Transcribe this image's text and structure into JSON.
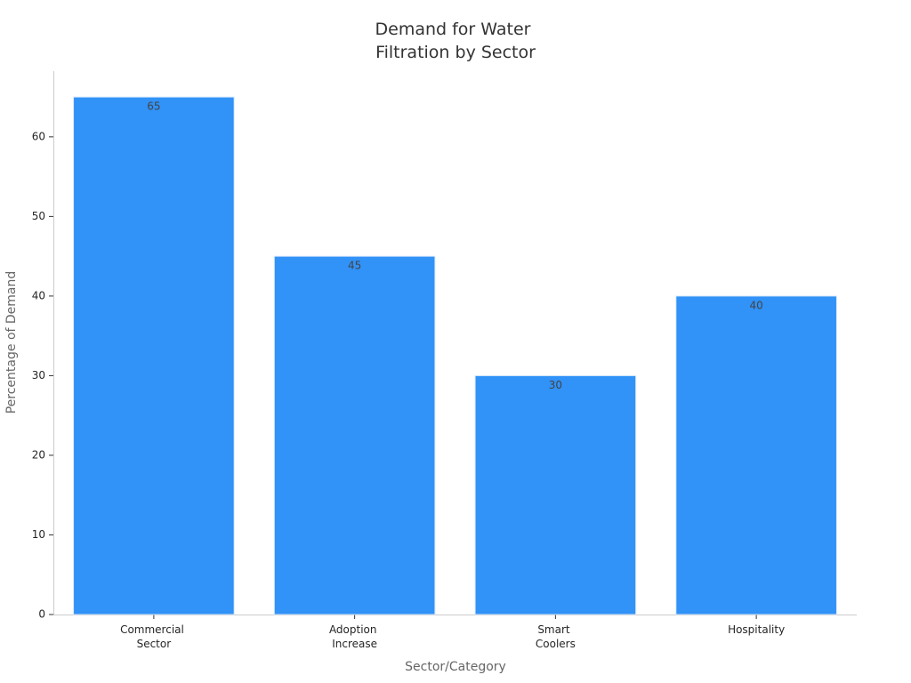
{
  "chart_data": {
    "type": "bar",
    "title": "Demand for Water Filtration by Sector",
    "x_label": "Sector/Category",
    "y_label": "Percentage of Demand",
    "categories": [
      "Commercial Sector",
      "Adoption Increase",
      "Smart Coolers",
      "Hospitality"
    ],
    "values": [
      65,
      45,
      30,
      40
    ],
    "color": "#3192f7",
    "ylim": [
      0,
      68.25
    ],
    "yticks": [
      0,
      10,
      20,
      30,
      40,
      50,
      60
    ],
    "grid": false
  }
}
